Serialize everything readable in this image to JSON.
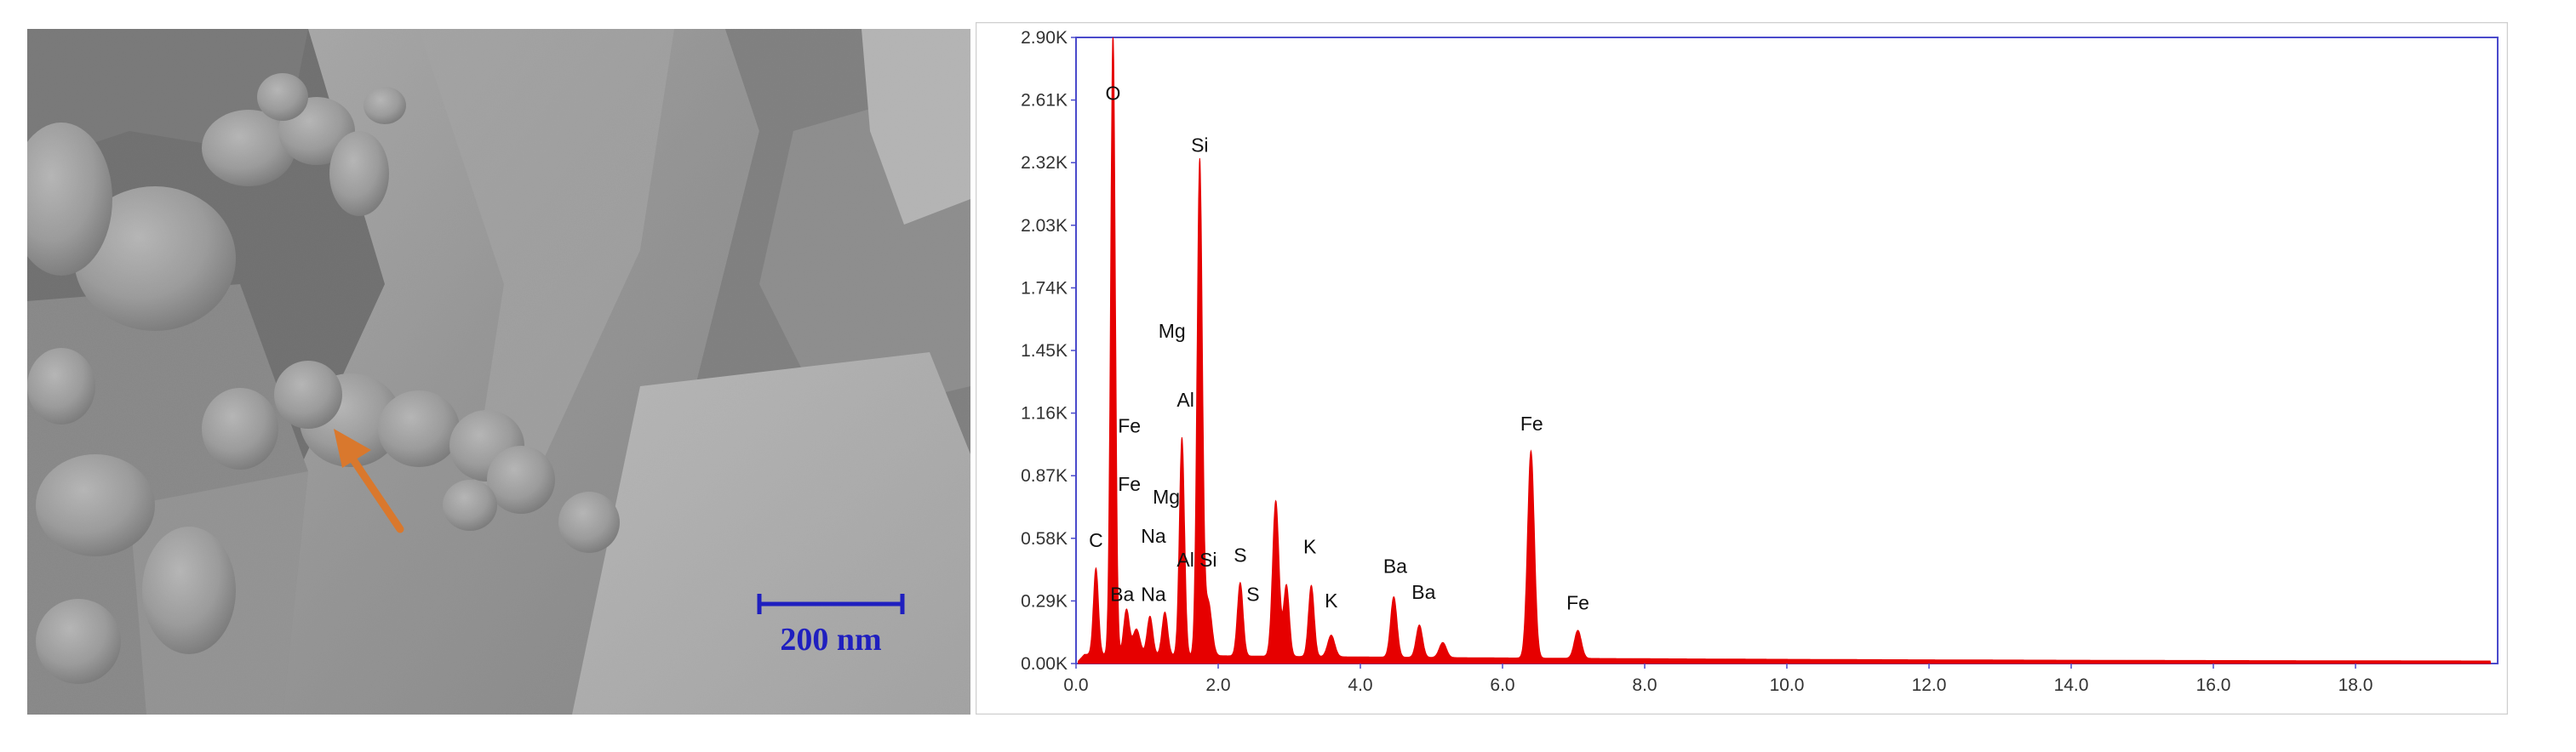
{
  "sem_image": {
    "scale_bar_label": "200 nm",
    "scale_bar_color": "#1f1fbf",
    "arrow_color": "#d9782d"
  },
  "chart_data": {
    "type": "area",
    "title": "",
    "xlabel": "",
    "ylabel": "",
    "xlim": [
      0,
      20
    ],
    "ylim": [
      0,
      2900
    ],
    "x_ticks": [
      "0.0",
      "2.0",
      "4.0",
      "6.0",
      "8.0",
      "10.0",
      "12.0",
      "14.0",
      "16.0",
      "18.0"
    ],
    "y_ticks": [
      "0.00K",
      "0.29K",
      "0.58K",
      "0.87K",
      "1.16K",
      "1.45K",
      "1.74K",
      "2.03K",
      "2.32K",
      "2.61K",
      "2.90K"
    ],
    "grid": false,
    "series_color": "#e60000",
    "baseline": 35,
    "peaks": [
      {
        "x": 0.28,
        "y": 400,
        "w": 0.035
      },
      {
        "x": 0.52,
        "y": 2880,
        "w": 0.033
      },
      {
        "x": 0.71,
        "y": 210,
        "w": 0.04
      },
      {
        "x": 0.85,
        "y": 120,
        "w": 0.05
      },
      {
        "x": 1.04,
        "y": 180,
        "w": 0.04
      },
      {
        "x": 1.25,
        "y": 200,
        "w": 0.04
      },
      {
        "x": 1.49,
        "y": 1010,
        "w": 0.036
      },
      {
        "x": 1.74,
        "y": 2290,
        "w": 0.037
      },
      {
        "x": 1.86,
        "y": 250,
        "w": 0.05
      },
      {
        "x": 2.31,
        "y": 340,
        "w": 0.04
      },
      {
        "x": 2.81,
        "y": 720,
        "w": 0.045
      },
      {
        "x": 2.96,
        "y": 330,
        "w": 0.04
      },
      {
        "x": 3.31,
        "y": 330,
        "w": 0.04
      },
      {
        "x": 3.59,
        "y": 100,
        "w": 0.05
      },
      {
        "x": 4.47,
        "y": 280,
        "w": 0.045
      },
      {
        "x": 4.83,
        "y": 150,
        "w": 0.045
      },
      {
        "x": 5.16,
        "y": 70,
        "w": 0.05
      },
      {
        "x": 6.4,
        "y": 960,
        "w": 0.048
      },
      {
        "x": 7.06,
        "y": 130,
        "w": 0.05
      }
    ],
    "annotations": [
      {
        "text": "O",
        "x": 0.52,
        "y": 2610
      },
      {
        "text": "Si",
        "x": 1.74,
        "y": 2370
      },
      {
        "text": "Mg",
        "x": 1.35,
        "y": 1510
      },
      {
        "text": "Al",
        "x": 1.54,
        "y": 1190
      },
      {
        "text": "Fe",
        "x": 0.75,
        "y": 1070
      },
      {
        "text": "Fe",
        "x": 0.75,
        "y": 800
      },
      {
        "text": "Mg",
        "x": 1.27,
        "y": 740
      },
      {
        "text": "Na",
        "x": 1.09,
        "y": 560
      },
      {
        "text": "C",
        "x": 0.28,
        "y": 540
      },
      {
        "text": "Al",
        "x": 1.54,
        "y": 450
      },
      {
        "text": "Si",
        "x": 1.86,
        "y": 450
      },
      {
        "text": "S",
        "x": 2.31,
        "y": 470
      },
      {
        "text": "K",
        "x": 3.29,
        "y": 510
      },
      {
        "text": "Na",
        "x": 1.09,
        "y": 290
      },
      {
        "text": "Ba",
        "x": 0.65,
        "y": 290
      },
      {
        "text": "S",
        "x": 2.49,
        "y": 290
      },
      {
        "text": "K",
        "x": 3.59,
        "y": 260
      },
      {
        "text": "Ba",
        "x": 4.49,
        "y": 420
      },
      {
        "text": "Ba",
        "x": 4.89,
        "y": 300
      },
      {
        "text": "Fe",
        "x": 6.41,
        "y": 1080
      },
      {
        "text": "Fe",
        "x": 7.06,
        "y": 250
      }
    ]
  }
}
